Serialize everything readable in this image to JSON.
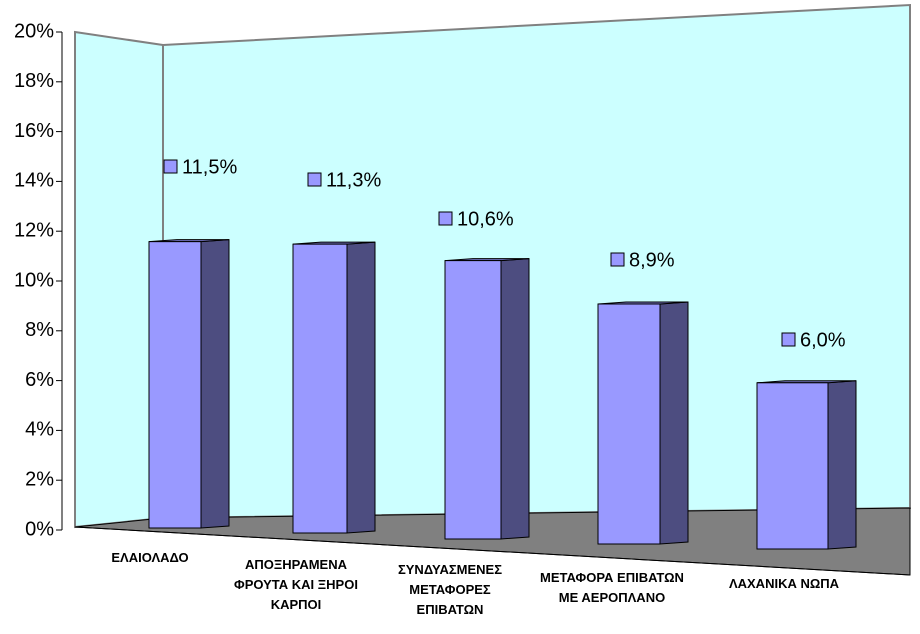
{
  "chart_data": {
    "type": "bar3d",
    "categories": [
      "ΕΛΑΙΟΛΑΔΟ",
      "ΑΠΟΞΗΡΑΜΕΝΑ ΦΡΟΥΤΑ ΚΑΙ ΞΗΡΟΙ ΚΑΡΠΟΙ",
      "ΣΥΝΔΥΑΣΜΕΝΕΣ ΜΕΤΑΦΟΡΕΣ ΕΠΙΒΑΤΩΝ",
      "ΜΕΤΑΦΟΡΑ ΕΠΙΒΑΤΩΝ ΜΕ ΑΕΡΟΠΛΑΝΟ",
      "ΛΑΧΑΝΙΚΑ ΝΩΠΑ"
    ],
    "values": [
      11.5,
      11.3,
      10.6,
      8.9,
      6.0
    ],
    "value_labels": [
      "11,5%",
      "11,3%",
      "10,6%",
      "8,9%",
      "6,0%"
    ],
    "color": "#9999ff",
    "ylim": [
      0,
      20
    ],
    "yticks": [
      {
        "value": 0,
        "label": "0%"
      },
      {
        "value": 2,
        "label": "2%"
      },
      {
        "value": 4,
        "label": "4%"
      },
      {
        "value": 6,
        "label": "6%"
      },
      {
        "value": 8,
        "label": "8%"
      },
      {
        "value": 10,
        "label": "10%"
      },
      {
        "value": 12,
        "label": "12%"
      },
      {
        "value": 14,
        "label": "14%"
      },
      {
        "value": 16,
        "label": "16%"
      },
      {
        "value": 18,
        "label": "18%"
      },
      {
        "value": 20,
        "label": "20%"
      }
    ]
  }
}
